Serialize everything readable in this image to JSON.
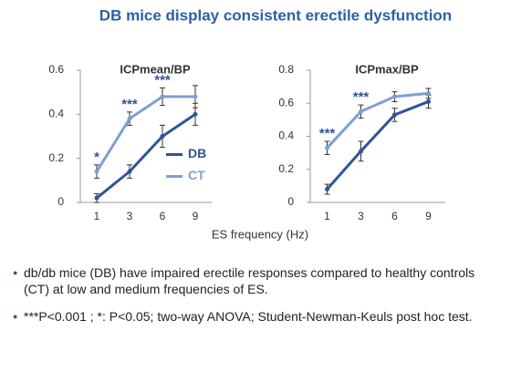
{
  "title": "DB mice display consistent erectile dysfunction",
  "xlabel": "ES frequency (Hz)",
  "bullets": [
    "db/db mice (DB) have impaired erectile responses compared to healthy controls (CT) at low and medium frequencies of ES.",
    "***P<0.001 ; *: P<0.05; two-way ANOVA; Student-Newman-Keuls post hoc test."
  ],
  "chart_data": [
    {
      "type": "line",
      "title": "ICPmean/BP",
      "categories": [
        "1",
        "3",
        "6",
        "9"
      ],
      "ylim": [
        0,
        0.6
      ],
      "yticks": [
        0,
        0.2,
        0.4,
        0.6
      ],
      "legend": "center-right",
      "series": [
        {
          "name": "DB",
          "color": "#2f5597",
          "values": [
            0.02,
            0.14,
            0.3,
            0.4
          ],
          "errors": [
            0.02,
            0.03,
            0.05,
            0.05
          ]
        },
        {
          "name": "CT",
          "color": "#7f9fd3",
          "values": [
            0.14,
            0.38,
            0.48,
            0.48
          ],
          "errors": [
            0.03,
            0.03,
            0.04,
            0.05
          ]
        }
      ],
      "annotations": [
        {
          "text": "*",
          "x": "1"
        },
        {
          "text": "***",
          "x": "3"
        },
        {
          "text": "***",
          "x": "6"
        }
      ]
    },
    {
      "type": "line",
      "title": "ICPmax/BP",
      "categories": [
        "1",
        "3",
        "6",
        "9"
      ],
      "ylim": [
        0,
        0.8
      ],
      "yticks": [
        0,
        0.2,
        0.4,
        0.6,
        0.8
      ],
      "legend": false,
      "series": [
        {
          "name": "DB",
          "color": "#2f5597",
          "values": [
            0.08,
            0.31,
            0.53,
            0.61
          ],
          "errors": [
            0.03,
            0.06,
            0.04,
            0.04
          ]
        },
        {
          "name": "CT",
          "color": "#7f9fd3",
          "values": [
            0.33,
            0.55,
            0.64,
            0.66
          ],
          "errors": [
            0.04,
            0.04,
            0.03,
            0.03
          ]
        }
      ],
      "annotations": [
        {
          "text": "***",
          "x": "1"
        },
        {
          "text": "***",
          "x": "3"
        }
      ]
    }
  ]
}
